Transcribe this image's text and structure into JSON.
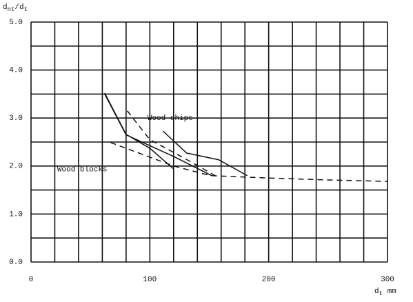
{
  "chart_data": {
    "type": "line",
    "y_label_parts": [
      "d",
      "nt",
      "/d",
      "t"
    ],
    "x_label_parts": [
      "d",
      "t",
      " mm"
    ],
    "xlim": [
      0,
      300
    ],
    "ylim": [
      0,
      5
    ],
    "xticks": [
      0,
      100,
      200,
      300
    ],
    "yticks": [
      {
        "value": 0,
        "label": "0.0"
      },
      {
        "value": 1,
        "label": "1.0"
      },
      {
        "value": 2,
        "label": "2.0"
      },
      {
        "value": 3,
        "label": "3.0"
      },
      {
        "value": 4,
        "label": "4.0"
      },
      {
        "value": 5,
        "label": "5.0"
      }
    ],
    "xgrid": [
      0,
      20,
      40,
      60,
      80,
      100,
      120,
      140,
      160,
      180,
      200,
      220,
      240,
      260,
      280,
      300
    ],
    "ygrid": [
      0,
      0.5,
      1,
      1.5,
      2,
      2.5,
      3,
      3.5,
      4,
      4.5,
      5
    ],
    "grid": true,
    "annotations": [
      {
        "text": "Wood chips",
        "x": 98,
        "y": 3.0
      },
      {
        "text": "Wood blocks",
        "x": 22,
        "y": 1.93
      }
    ],
    "series": [
      {
        "style": "solid",
        "color": "#111111",
        "x": [
          62,
          80,
          100,
          120
        ],
        "values": [
          3.52,
          2.66,
          2.37,
          1.94
        ]
      },
      {
        "style": "solid",
        "color": "#111111",
        "x": [
          62,
          80,
          120,
          152
        ],
        "values": [
          3.5,
          2.65,
          2.2,
          1.8
        ]
      },
      {
        "style": "dashed",
        "color": "#111111",
        "x": [
          81,
          100,
          130,
          155
        ],
        "values": [
          3.15,
          2.55,
          2.15,
          1.8
        ]
      },
      {
        "style": "solid",
        "color": "#111111",
        "x": [
          111,
          131,
          158,
          182
        ],
        "values": [
          2.73,
          2.27,
          2.13,
          1.8
        ]
      },
      {
        "style": "dashed",
        "color": "#111111",
        "x": [
          67,
          120,
          151,
          200,
          250,
          300
        ],
        "values": [
          2.49,
          2.0,
          1.8,
          1.75,
          1.71,
          1.68
        ]
      }
    ]
  }
}
